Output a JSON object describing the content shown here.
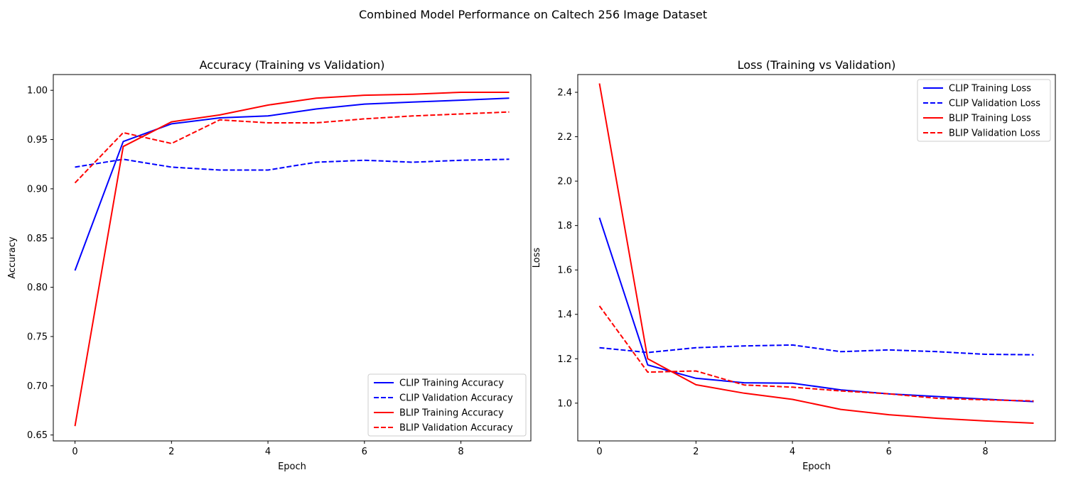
{
  "figure": {
    "title": "Combined Model Performance on Caltech 256 Image Dataset"
  },
  "chart_data": [
    {
      "type": "line",
      "title": "Accuracy (Training vs Validation)",
      "xlabel": "Epoch",
      "ylabel": "Accuracy",
      "xlim": [
        -0.45,
        9.45
      ],
      "ylim": [
        0.644,
        1.016
      ],
      "xticks": [
        0,
        2,
        4,
        6,
        8
      ],
      "yticks": [
        0.65,
        0.7,
        0.75,
        0.8,
        0.85,
        0.9,
        0.95,
        1.0
      ],
      "ytick_decimals": 2,
      "grid": false,
      "legend_position": "lower-right",
      "x": [
        0,
        1,
        2,
        3,
        4,
        5,
        6,
        7,
        8,
        9
      ],
      "series": [
        {
          "name": "CLIP Training Accuracy",
          "color": "#0000ff",
          "dash": "solid",
          "values": [
            0.817,
            0.948,
            0.966,
            0.972,
            0.974,
            0.981,
            0.986,
            0.988,
            0.99,
            0.992
          ]
        },
        {
          "name": "CLIP Validation Accuracy",
          "color": "#0000ff",
          "dash": "dashed",
          "values": [
            0.922,
            0.93,
            0.922,
            0.919,
            0.919,
            0.927,
            0.929,
            0.927,
            0.929,
            0.93
          ]
        },
        {
          "name": "BLIP Training Accuracy",
          "color": "#ff0000",
          "dash": "solid",
          "values": [
            0.659,
            0.943,
            0.968,
            0.975,
            0.985,
            0.992,
            0.995,
            0.996,
            0.998,
            0.998
          ]
        },
        {
          "name": "BLIP Validation Accuracy",
          "color": "#ff0000",
          "dash": "dashed",
          "values": [
            0.906,
            0.957,
            0.946,
            0.97,
            0.967,
            0.967,
            0.971,
            0.974,
            0.976,
            0.978
          ]
        }
      ]
    },
    {
      "type": "line",
      "title": "Loss (Training vs Validation)",
      "xlabel": "Epoch",
      "ylabel": "Loss",
      "xlim": [
        -0.45,
        9.45
      ],
      "ylim": [
        0.83,
        2.48
      ],
      "xticks": [
        0,
        2,
        4,
        6,
        8
      ],
      "yticks": [
        1.0,
        1.2,
        1.4,
        1.6,
        1.8,
        2.0,
        2.2,
        2.4
      ],
      "ytick_decimals": 1,
      "grid": false,
      "legend_position": "upper-right",
      "x": [
        0,
        1,
        2,
        3,
        4,
        5,
        6,
        7,
        8,
        9
      ],
      "series": [
        {
          "name": "CLIP Training Loss",
          "color": "#0000ff",
          "dash": "solid",
          "values": [
            1.835,
            1.172,
            1.112,
            1.092,
            1.09,
            1.06,
            1.042,
            1.03,
            1.018,
            1.007
          ]
        },
        {
          "name": "CLIP Validation Loss",
          "color": "#0000ff",
          "dash": "dashed",
          "values": [
            1.25,
            1.228,
            1.25,
            1.258,
            1.262,
            1.232,
            1.24,
            1.232,
            1.22,
            1.218
          ]
        },
        {
          "name": "BLIP Training Loss",
          "color": "#ff0000",
          "dash": "solid",
          "values": [
            2.44,
            1.2,
            1.083,
            1.045,
            1.017,
            0.972,
            0.948,
            0.932,
            0.92,
            0.91
          ]
        },
        {
          "name": "BLIP Validation Loss",
          "color": "#ff0000",
          "dash": "dashed",
          "values": [
            1.438,
            1.14,
            1.145,
            1.082,
            1.072,
            1.055,
            1.042,
            1.022,
            1.015,
            1.01
          ]
        }
      ]
    }
  ]
}
